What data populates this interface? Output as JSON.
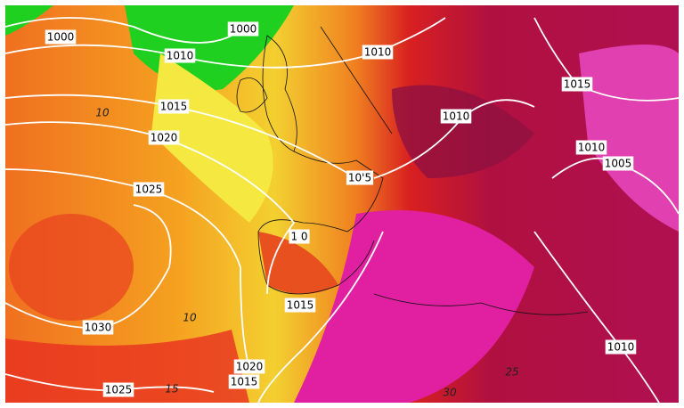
{
  "map": {
    "isobar_labels": [
      "1000",
      "1000",
      "1010",
      "1010",
      "1015",
      "1020",
      "1025",
      "10'5",
      "1 0",
      "1010",
      "1015",
      "1010",
      "1005",
      "1030",
      "1020",
      "1015",
      "1025",
      "1010",
      "1015"
    ],
    "temperature_labels": [
      "10",
      "10",
      "15",
      "25",
      "30"
    ]
  }
}
